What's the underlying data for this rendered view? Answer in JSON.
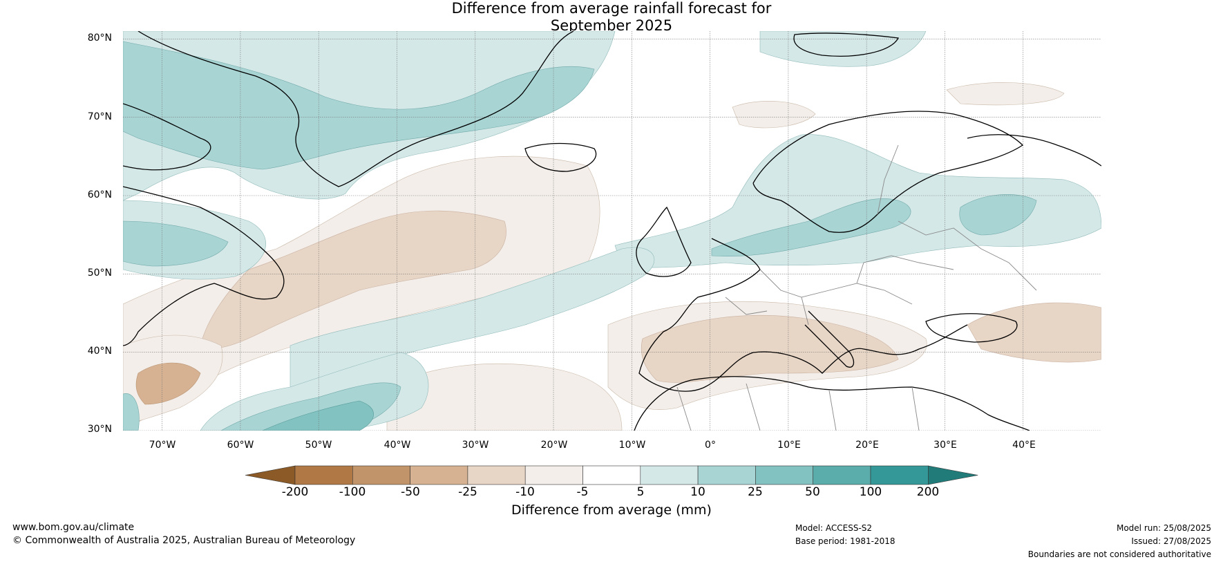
{
  "title": {
    "line1": "Difference from average rainfall forecast for",
    "line2": "September 2025"
  },
  "map": {
    "lat_labels": [
      "80°N",
      "70°N",
      "60°N",
      "50°N",
      "40°N",
      "30°N"
    ],
    "lon_labels": [
      "70°W",
      "60°W",
      "50°W",
      "40°W",
      "30°W",
      "20°W",
      "10°W",
      "0°",
      "10°E",
      "20°E",
      "30°E",
      "40°E"
    ],
    "extent": {
      "lon_min": -75,
      "lon_max": 50,
      "lat_min": 30,
      "lat_max": 81
    }
  },
  "legend": {
    "title": "Difference from average (mm)",
    "ticks": [
      "-200",
      "-100",
      "-50",
      "-25",
      "-10",
      "-5",
      "5",
      "10",
      "25",
      "50",
      "100",
      "200"
    ],
    "colors": [
      "#8b5a26",
      "#b07844",
      "#c29469",
      "#d6b292",
      "#e7d5c5",
      "#f3eee9",
      "#ffffff",
      "#d5e8e8",
      "#a9d4d4",
      "#82c2c0",
      "#5aadab",
      "#339897",
      "#217b79"
    ]
  },
  "footer": {
    "website": "www.bom.gov.au/climate",
    "copyright": "© Commonwealth of Australia 2025, Australian Bureau of Meteorology",
    "model": "Model: ACCESS-S2",
    "base_period": "Base period: 1981-2018",
    "model_run": "Model run: 25/08/2025",
    "issued": "Issued: 27/08/2025",
    "boundaries": "Boundaries are not considered authoritative"
  }
}
